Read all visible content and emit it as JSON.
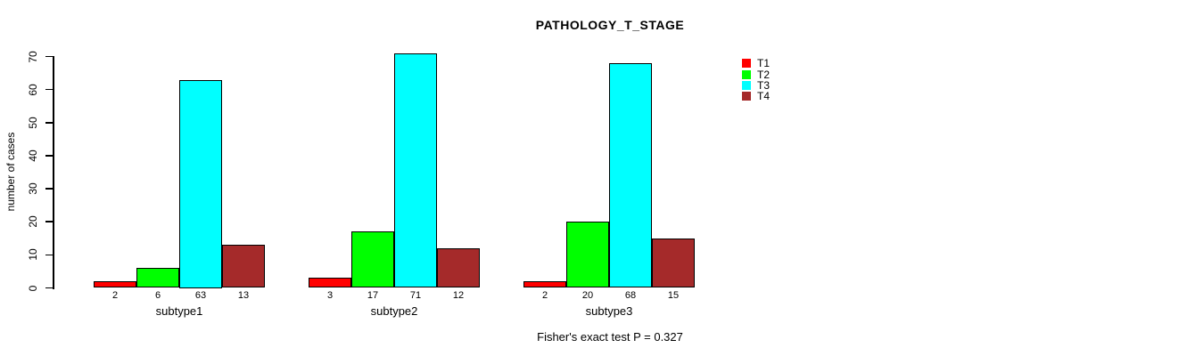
{
  "chart_data": {
    "type": "bar",
    "title": "PATHOLOGY_T_STAGE",
    "categories": [
      "subtype1",
      "subtype2",
      "subtype3"
    ],
    "series": [
      {
        "name": "T1",
        "color": "#FF0000",
        "values": [
          2,
          3,
          2
        ]
      },
      {
        "name": "T2",
        "color": "#00FF00",
        "values": [
          6,
          17,
          20
        ]
      },
      {
        "name": "T3",
        "color": "#00FFFF",
        "values": [
          63,
          71,
          68
        ]
      },
      {
        "name": "T4",
        "color": "#A52A2A",
        "values": [
          13,
          12,
          15
        ]
      }
    ],
    "xlabel": "",
    "ylabel": "number of cases",
    "ylim": [
      0,
      70
    ],
    "yticks": [
      0,
      10,
      20,
      30,
      40,
      50,
      60,
      70
    ],
    "grid": false,
    "legend_position": "top-right",
    "legend_entries": [
      "T1",
      "T2",
      "T3",
      "T4"
    ],
    "bar_value_labels": true,
    "annotation": "Fisher's exact test P = 0.327"
  }
}
